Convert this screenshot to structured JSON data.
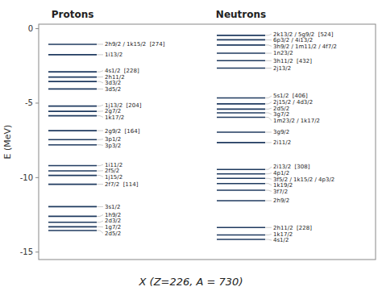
{
  "chart_data": {
    "type": "levels",
    "title": "X (Z=226, A = 730)",
    "y_label": "E (MeV)",
    "ylim": [
      -15.5,
      0.3
    ],
    "yticks": [
      0,
      -5,
      -10,
      -15
    ],
    "series": [
      {
        "name": "Protons",
        "values": [
          -1.05,
          -1.75,
          -2.9,
          -3.25,
          -3.55,
          -4.05,
          -5.2,
          -5.55,
          -5.85,
          -6.85,
          -7.45,
          -7.8,
          -9.2,
          -9.55,
          -9.85,
          -10.45,
          -11.95,
          -12.6,
          -13.0,
          -13.3,
          -13.55
        ],
        "labels": [
          "2h9/2 / 1k15/2  [274]",
          "1i13/2",
          "4s1/2  [228]",
          "2h11/2",
          "3d3/2",
          "3d5/2",
          "1j13/2  [204]",
          "2g7/2",
          "1k17/2",
          "2g9/2  [164]",
          "3p1/2",
          "3p3/2",
          "1i11/2",
          "2f5/2",
          "1j15/2",
          "2f7/2  [114]",
          "3s1/2",
          "1h9/2",
          "2d3/2",
          "1g7/2",
          "2d5/2"
        ]
      },
      {
        "name": "Neutrons",
        "values": [
          -0.45,
          -0.75,
          -1.1,
          -1.65,
          -2.15,
          -2.65,
          -4.65,
          -5.05,
          -5.4,
          -5.65,
          -5.95,
          -6.95,
          -7.65,
          -9.45,
          -9.75,
          -10.05,
          -10.4,
          -10.85,
          -11.55,
          -13.35,
          -13.85,
          -14.15
        ],
        "labels": [
          "2k13/2 / 5g9/2  [524]",
          "6p3/2 / 4i13/2",
          "3h9/2 / 1m11/2 / 4f7/2",
          "1n23/2",
          "3h11/2  [432]",
          "2j13/2",
          "5s1/2  [406]",
          "2j15/2 / 4d3/2",
          "2d5/2",
          "3g7/2",
          "1m23/2 / 1k17/2",
          "3g9/2",
          "2i11/2",
          "2i13/2  [308]",
          "4p1/2",
          "3f5/2 / 1k15/2 / 4p3/2",
          "1k19/2",
          "3f7/2",
          "2h9/2",
          "2h11/2  [228]",
          "1k17/2",
          "4s1/2"
        ]
      }
    ]
  }
}
